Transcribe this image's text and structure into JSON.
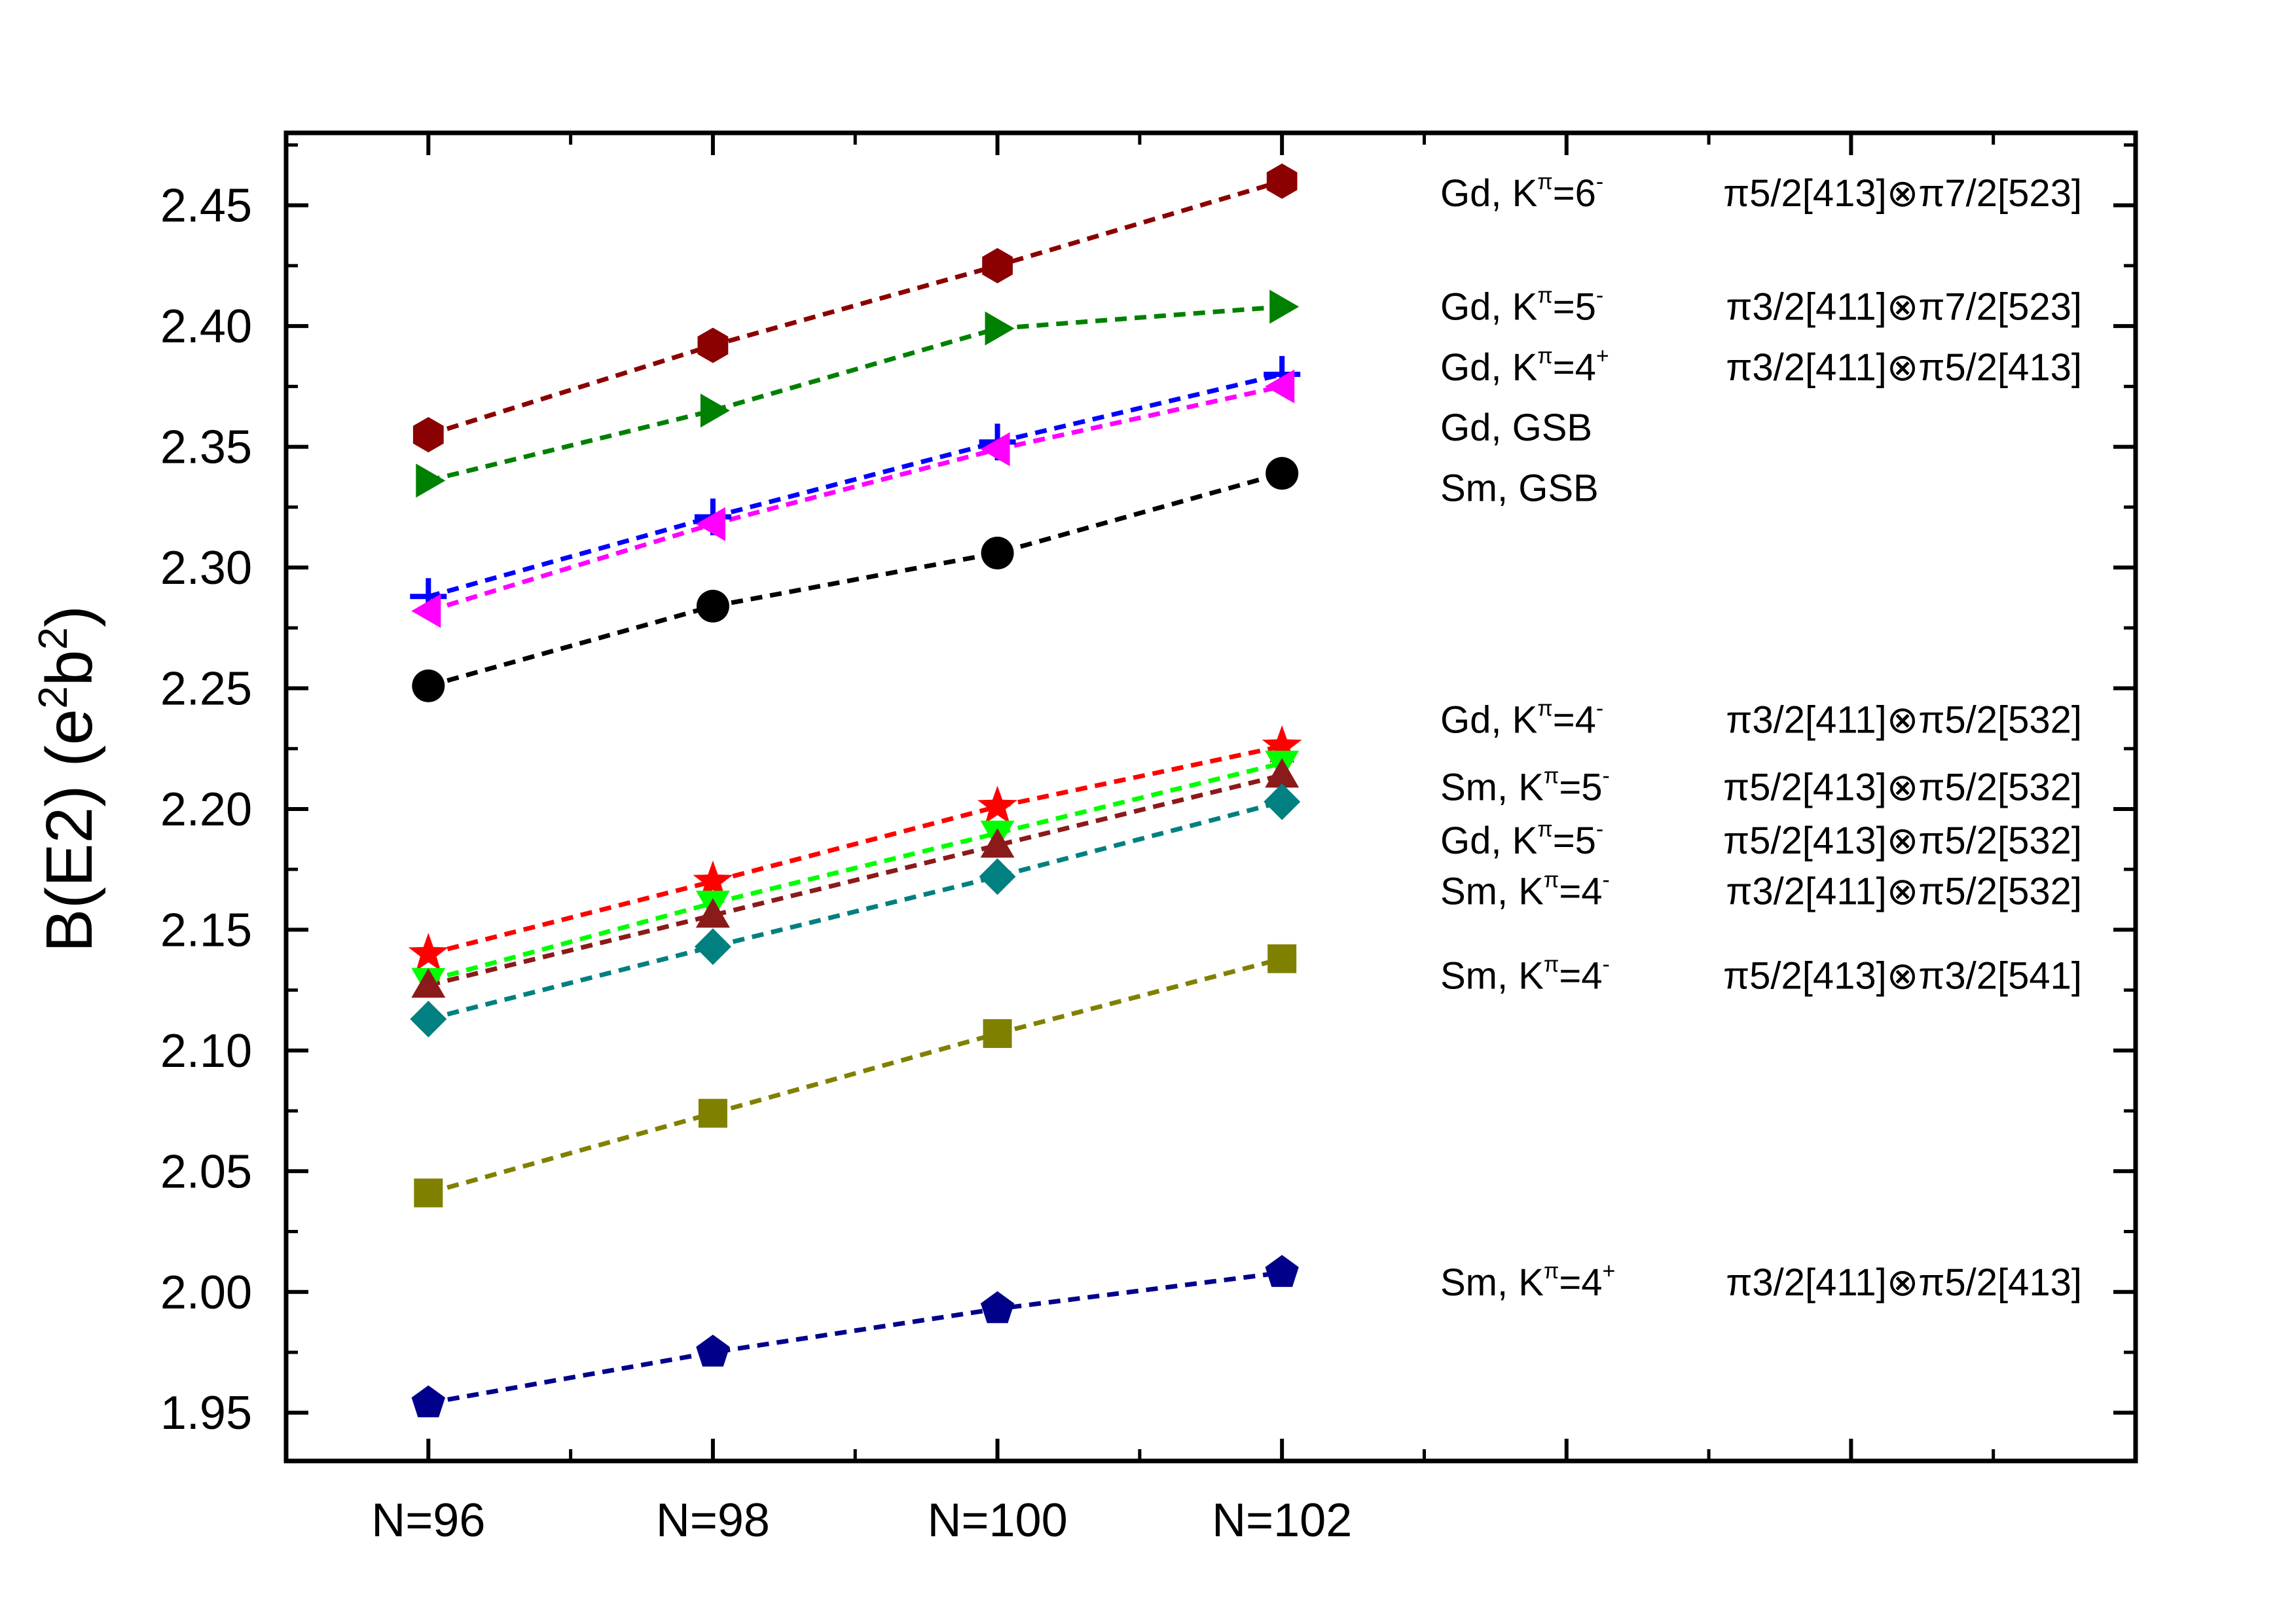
{
  "chart_data": {
    "type": "line",
    "title": "",
    "xlabel": "",
    "ylabel": "B(E2) (e2b2)",
    "ylabel_parts": {
      "base": "B(E2) (e",
      "sup1": "2",
      "mid": "b",
      "sup2": "2",
      "end": ")"
    },
    "categories": [
      "N=96",
      "N=98",
      "N=100",
      "N=102"
    ],
    "x": [
      96,
      98,
      100,
      102
    ],
    "xlim": [
      95,
      108
    ],
    "ylim": [
      1.93,
      2.48
    ],
    "yticks": [
      "1.95",
      "2.00",
      "2.05",
      "2.10",
      "2.15",
      "2.20",
      "2.25",
      "2.30",
      "2.35",
      "2.40",
      "2.45"
    ],
    "ytick_values": [
      1.95,
      2.0,
      2.05,
      2.1,
      2.15,
      2.2,
      2.25,
      2.3,
      2.35,
      2.4,
      2.45
    ],
    "grid": false,
    "line_style": "dashed",
    "series": [
      {
        "name": "Gd, Kπ=6-",
        "nucleus": "Gd, K",
        "kpi": "π",
        "kval": "=6",
        "parity": "-",
        "config": "π5/2[413]⊗π7/2[523]",
        "marker": "hexagon",
        "color": "#8b0000",
        "values": [
          2.355,
          2.392,
          2.425,
          2.46
        ],
        "label_y": 2.455
      },
      {
        "name": "Gd, Kπ=5-",
        "nucleus": "Gd, K",
        "kpi": "π",
        "kval": "=5",
        "parity": "-",
        "config": "π3/2[411]⊗π7/2[523]",
        "marker": "triangle-right",
        "color": "#008000",
        "values": [
          2.336,
          2.365,
          2.399,
          2.408
        ],
        "label_y": 2.408
      },
      {
        "name": "Gd, Kπ=4+",
        "nucleus": "Gd, K",
        "kpi": "π",
        "kval": "=4",
        "parity": "+",
        "config": "π3/2[411]⊗π5/2[413]",
        "marker": "plus",
        "color": "#0000ff",
        "values": [
          2.288,
          2.321,
          2.352,
          2.38
        ],
        "label_y": 2.383
      },
      {
        "name": "Gd, GSB",
        "nucleus": "Gd, GSB",
        "kpi": "",
        "kval": "",
        "parity": "",
        "config": "",
        "marker": "triangle-left",
        "color": "#ff00ff",
        "values": [
          2.282,
          2.318,
          2.349,
          2.375
        ],
        "label_y": 2.358
      },
      {
        "name": "Sm, GSB",
        "nucleus": "Sm, GSB",
        "kpi": "",
        "kval": "",
        "parity": "",
        "config": "",
        "marker": "circle",
        "color": "#000000",
        "values": [
          2.251,
          2.284,
          2.306,
          2.339
        ],
        "label_y": 2.333
      },
      {
        "name": "Gd, Kπ=4-",
        "nucleus": "Gd, K",
        "kpi": "π",
        "kval": "=4",
        "parity": "-",
        "config": "π3/2[411]⊗π5/2[532]",
        "marker": "star",
        "color": "#ff0000",
        "values": [
          2.14,
          2.17,
          2.201,
          2.226
        ],
        "label_y": 2.237
      },
      {
        "name": "Sm, Kπ=5-",
        "nucleus": "Sm, K",
        "kpi": "π",
        "kval": "=5",
        "parity": "-",
        "config": "π5/2[413]⊗π5/2[532]",
        "marker": "triangle-down",
        "color": "#00ff00",
        "values": [
          2.129,
          2.161,
          2.19,
          2.219
        ],
        "label_y": 2.209
      },
      {
        "name": "Gd, Kπ=5-",
        "nucleus": "Gd, K",
        "kpi": "π",
        "kval": "=5",
        "parity": "-",
        "config": "π5/2[413]⊗π5/2[532]",
        "marker": "triangle-up",
        "color": "#8b1a1a",
        "values": [
          2.127,
          2.156,
          2.185,
          2.214
        ],
        "label_y": 2.187
      },
      {
        "name": "Sm, Kπ=4-",
        "nucleus": "Sm, K",
        "kpi": "π",
        "kval": "=4",
        "parity": "-",
        "config": "π3/2[411]⊗π5/2[532]",
        "marker": "diamond",
        "color": "#008080",
        "values": [
          2.113,
          2.143,
          2.172,
          2.203
        ],
        "label_y": 2.166
      },
      {
        "name": "Sm, Kπ=4-",
        "nucleus": "Sm, K",
        "kpi": "π",
        "kval": "=4",
        "parity": "-",
        "config": "π5/2[413]⊗π3/2[541]",
        "marker": "square",
        "color": "#808000",
        "values": [
          2.041,
          2.074,
          2.107,
          2.138
        ],
        "label_y": 2.131
      },
      {
        "name": "Sm, Kπ=4+",
        "nucleus": "Sm, K",
        "kpi": "π",
        "kval": "=4",
        "parity": "+",
        "config": "π3/2[411]⊗π5/2[413]",
        "marker": "pentagon",
        "color": "#00008b",
        "values": [
          1.954,
          1.975,
          1.993,
          2.008
        ],
        "label_y": 2.004
      }
    ]
  }
}
